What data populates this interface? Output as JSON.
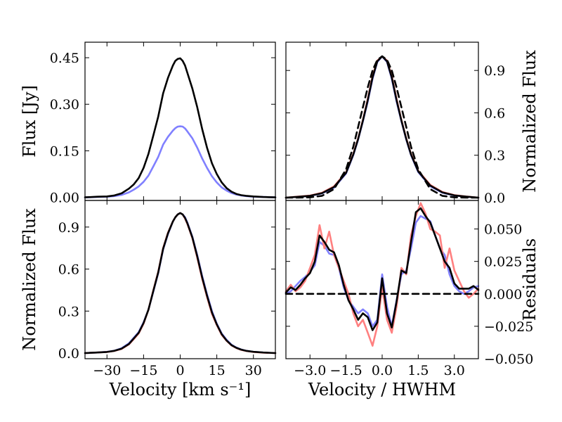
{
  "chart_data": [
    {
      "panel": "top-left",
      "type": "line",
      "title": "",
      "xlabel": "",
      "ylabel": "Flux [Jy]",
      "xlim": [
        -39,
        39
      ],
      "ylim": [
        -0.01,
        0.5
      ],
      "xticks": [
        -30,
        -15,
        0,
        15,
        30
      ],
      "xtick_labels": [],
      "yticks": [
        0.0,
        0.15,
        0.3,
        0.45
      ],
      "ytick_labels": [
        "0.00",
        "0.15",
        "0.30",
        "0.45"
      ],
      "y_axis_side": "left",
      "series": [
        {
          "color": "#8080ff",
          "x": [
            -39,
            -34,
            -30,
            -27,
            -24,
            -21,
            -19,
            -17,
            -15,
            -13,
            -11,
            -9,
            -7,
            -5,
            -3,
            -2,
            -1,
            0,
            1,
            2,
            3,
            5,
            7,
            9,
            11,
            13,
            15,
            17,
            19,
            21,
            23,
            25,
            27,
            30,
            34,
            39
          ],
          "y": [
            0.0,
            0.001,
            0.002,
            0.004,
            0.008,
            0.016,
            0.025,
            0.035,
            0.05,
            0.07,
            0.1,
            0.13,
            0.17,
            0.195,
            0.215,
            0.223,
            0.228,
            0.229,
            0.228,
            0.222,
            0.212,
            0.19,
            0.16,
            0.125,
            0.095,
            0.068,
            0.048,
            0.032,
            0.022,
            0.014,
            0.009,
            0.006,
            0.004,
            0.002,
            0.001,
            0.0
          ]
        },
        {
          "color": "#000000",
          "x": [
            -39,
            -34,
            -30,
            -27,
            -24,
            -21,
            -19,
            -17,
            -15,
            -13,
            -11,
            -9,
            -7,
            -5,
            -3,
            -2,
            -1,
            0,
            1,
            2,
            3,
            5,
            7,
            9,
            11,
            13,
            15,
            17,
            19,
            21,
            23,
            25,
            27,
            30,
            34,
            39
          ],
          "y": [
            0.0,
            0.002,
            0.003,
            0.006,
            0.013,
            0.028,
            0.042,
            0.062,
            0.095,
            0.14,
            0.2,
            0.26,
            0.335,
            0.385,
            0.425,
            0.44,
            0.446,
            0.448,
            0.44,
            0.425,
            0.4,
            0.35,
            0.29,
            0.22,
            0.16,
            0.11,
            0.075,
            0.048,
            0.03,
            0.018,
            0.011,
            0.007,
            0.005,
            0.003,
            0.001,
            0.0
          ]
        }
      ]
    },
    {
      "panel": "top-right",
      "type": "line",
      "title": "",
      "xlabel": "",
      "ylabel": "Normalized Flux",
      "xlim": [
        -4.0,
        4.0
      ],
      "ylim": [
        -0.02,
        1.1
      ],
      "xticks": [
        -3.0,
        -1.5,
        0.0,
        1.5,
        3.0
      ],
      "xtick_labels": [],
      "yticks": [
        0.0,
        0.3,
        0.6,
        0.9
      ],
      "ytick_labels": [
        "0.0",
        "0.3",
        "0.6",
        "0.9"
      ],
      "y_axis_side": "right",
      "series": [
        {
          "color": "#8080ff",
          "x": [
            -4,
            -3.5,
            -3,
            -2.5,
            -2,
            -1.5,
            -1.2,
            -1,
            -0.8,
            -0.6,
            -0.4,
            -0.2,
            0,
            0.2,
            0.4,
            0.6,
            0.8,
            1,
            1.2,
            1.5,
            2,
            2.5,
            3,
            3.5,
            4
          ],
          "y": [
            0.0,
            0.005,
            0.012,
            0.03,
            0.07,
            0.17,
            0.3,
            0.41,
            0.54,
            0.68,
            0.84,
            0.96,
            1.0,
            0.96,
            0.84,
            0.68,
            0.54,
            0.41,
            0.3,
            0.18,
            0.08,
            0.035,
            0.015,
            0.006,
            0.0
          ]
        },
        {
          "color": "#ff8080",
          "x": [
            -4,
            -3.5,
            -3,
            -2.5,
            -2,
            -1.5,
            -1.2,
            -1,
            -0.8,
            -0.6,
            -0.4,
            -0.2,
            0,
            0.2,
            0.4,
            0.6,
            0.8,
            1,
            1.2,
            1.5,
            2,
            2.5,
            3,
            3.5,
            4
          ],
          "y": [
            0.0,
            0.007,
            0.015,
            0.035,
            0.08,
            0.18,
            0.31,
            0.42,
            0.55,
            0.7,
            0.86,
            0.97,
            1.0,
            0.97,
            0.86,
            0.7,
            0.55,
            0.42,
            0.31,
            0.19,
            0.09,
            0.04,
            0.018,
            0.008,
            0.0
          ]
        },
        {
          "color": "#000000",
          "x": [
            -4,
            -3.5,
            -3,
            -2.5,
            -2,
            -1.5,
            -1.2,
            -1,
            -0.8,
            -0.6,
            -0.4,
            -0.2,
            0,
            0.2,
            0.4,
            0.6,
            0.8,
            1,
            1.2,
            1.5,
            2,
            2.5,
            3,
            3.5,
            4
          ],
          "y": [
            0.0,
            0.006,
            0.013,
            0.032,
            0.075,
            0.175,
            0.305,
            0.415,
            0.545,
            0.69,
            0.85,
            0.965,
            1.0,
            0.965,
            0.85,
            0.69,
            0.545,
            0.415,
            0.305,
            0.185,
            0.085,
            0.037,
            0.016,
            0.007,
            0.0
          ]
        },
        {
          "color": "#000000",
          "dashed": true,
          "x": [
            -4,
            -3.5,
            -3,
            -2.5,
            -2,
            -1.5,
            -1.2,
            -1,
            -0.8,
            -0.6,
            -0.4,
            -0.2,
            0,
            0.2,
            0.4,
            0.6,
            0.8,
            1,
            1.2,
            1.5,
            2,
            2.5,
            3,
            3.5,
            4
          ],
          "y": [
            0.0,
            0.0,
            0.002,
            0.013,
            0.06,
            0.2,
            0.36,
            0.5,
            0.64,
            0.78,
            0.9,
            0.975,
            1.0,
            0.975,
            0.9,
            0.78,
            0.64,
            0.5,
            0.36,
            0.2,
            0.06,
            0.013,
            0.002,
            0.0,
            0.0
          ]
        }
      ]
    },
    {
      "panel": "bottom-left",
      "type": "line",
      "title": "",
      "xlabel": "Velocity [km s⁻¹]",
      "ylabel": "Normalized Flux",
      "xlim": [
        -39,
        39
      ],
      "ylim": [
        -0.04,
        1.09
      ],
      "xticks": [
        -30,
        -15,
        0,
        15,
        30
      ],
      "xtick_labels": [
        "−30",
        "−15",
        "0",
        "15",
        "30"
      ],
      "yticks": [
        0.0,
        0.3,
        0.6,
        0.9
      ],
      "ytick_labels": [
        "0.0",
        "0.3",
        "0.6",
        "0.9"
      ],
      "y_axis_side": "left",
      "series": [
        {
          "color": "#8080ff",
          "x": [
            -39,
            -34,
            -30,
            -27,
            -24,
            -21,
            -19,
            -17,
            -15,
            -13,
            -11,
            -9,
            -7,
            -5,
            -3,
            -2,
            -1,
            0,
            1,
            2,
            3,
            5,
            7,
            9,
            11,
            13,
            15,
            17,
            19,
            21,
            23,
            25,
            27,
            30,
            34,
            39
          ],
          "y": [
            0.0,
            0.004,
            0.009,
            0.017,
            0.035,
            0.07,
            0.11,
            0.15,
            0.22,
            0.31,
            0.44,
            0.57,
            0.74,
            0.85,
            0.94,
            0.97,
            0.99,
            1.0,
            0.99,
            0.97,
            0.93,
            0.83,
            0.7,
            0.55,
            0.42,
            0.3,
            0.21,
            0.14,
            0.095,
            0.06,
            0.04,
            0.026,
            0.017,
            0.009,
            0.004,
            0.0
          ]
        },
        {
          "color": "#ff8080",
          "x": [
            -39,
            -34,
            -30,
            -27,
            -24,
            -21,
            -19,
            -17,
            -15,
            -13,
            -11,
            -9,
            -7,
            -5,
            -3,
            -2,
            -1,
            0,
            1,
            2,
            3,
            5,
            7,
            9,
            11,
            13,
            15,
            17,
            19,
            21,
            23,
            25,
            27,
            30,
            34,
            39
          ],
          "y": [
            0.0,
            0.004,
            0.008,
            0.015,
            0.03,
            0.062,
            0.1,
            0.14,
            0.21,
            0.31,
            0.45,
            0.58,
            0.75,
            0.86,
            0.94,
            0.97,
            0.99,
            1.0,
            0.99,
            0.96,
            0.92,
            0.82,
            0.68,
            0.53,
            0.4,
            0.28,
            0.2,
            0.13,
            0.088,
            0.055,
            0.036,
            0.023,
            0.015,
            0.008,
            0.003,
            0.0
          ]
        },
        {
          "color": "#000000",
          "x": [
            -39,
            -34,
            -30,
            -27,
            -24,
            -21,
            -19,
            -17,
            -15,
            -13,
            -11,
            -9,
            -7,
            -5,
            -3,
            -2,
            -1,
            0,
            1,
            2,
            3,
            5,
            7,
            9,
            11,
            13,
            15,
            17,
            19,
            21,
            23,
            25,
            27,
            30,
            34,
            39
          ],
          "y": [
            0.0,
            0.004,
            0.008,
            0.016,
            0.032,
            0.065,
            0.105,
            0.145,
            0.215,
            0.31,
            0.445,
            0.575,
            0.745,
            0.855,
            0.94,
            0.97,
            0.99,
            1.0,
            0.99,
            0.965,
            0.925,
            0.825,
            0.69,
            0.54,
            0.41,
            0.29,
            0.205,
            0.135,
            0.09,
            0.057,
            0.038,
            0.025,
            0.016,
            0.009,
            0.004,
            0.0
          ]
        }
      ]
    },
    {
      "panel": "bottom-right",
      "type": "line",
      "title": "",
      "xlabel": "Velocity / HWHM",
      "ylabel": "Residuals",
      "xlim": [
        -4.0,
        4.0
      ],
      "ylim": [
        -0.05,
        0.072
      ],
      "xticks": [
        -3.0,
        -1.5,
        0.0,
        1.5,
        3.0
      ],
      "xtick_labels": [
        "−3.0",
        "−1.5",
        "0.0",
        "1.5",
        "3.0"
      ],
      "yticks": [
        -0.05,
        -0.025,
        0.0,
        0.025,
        0.05
      ],
      "ytick_labels": [
        "−0.050",
        "−0.025",
        "0.000",
        "0.025",
        "0.050"
      ],
      "y_axis_side": "right",
      "series": [
        {
          "color": "#8080ff",
          "x": [
            -4,
            -3.8,
            -3.6,
            -3.4,
            -3.2,
            -3.0,
            -2.8,
            -2.6,
            -2.4,
            -2.2,
            -2.0,
            -1.8,
            -1.6,
            -1.4,
            -1.2,
            -1.0,
            -0.8,
            -0.6,
            -0.4,
            -0.2,
            0.0,
            0.2,
            0.4,
            0.6,
            0.8,
            1.0,
            1.2,
            1.4,
            1.6,
            1.8,
            2.0,
            2.2,
            2.4,
            2.6,
            2.8,
            3.0,
            3.2,
            3.4,
            3.6,
            3.8,
            4.0
          ],
          "y": [
            0.0,
            0.002,
            0.006,
            0.01,
            0.013,
            0.017,
            0.022,
            0.04,
            0.037,
            0.031,
            0.03,
            0.02,
            0.005,
            -0.005,
            -0.01,
            -0.015,
            -0.012,
            -0.015,
            -0.025,
            -0.02,
            0.015,
            -0.01,
            -0.025,
            -0.005,
            0.015,
            0.018,
            0.035,
            0.055,
            0.06,
            0.058,
            0.056,
            0.045,
            0.035,
            0.03,
            0.015,
            0.006,
            0.002,
            0.0,
            0.002,
            0.005,
            0.006
          ]
        },
        {
          "color": "#ff8080",
          "x": [
            -4,
            -3.8,
            -3.6,
            -3.4,
            -3.2,
            -3.0,
            -2.8,
            -2.6,
            -2.4,
            -2.2,
            -2.0,
            -1.8,
            -1.6,
            -1.4,
            -1.2,
            -1.0,
            -0.8,
            -0.6,
            -0.4,
            -0.2,
            0.0,
            0.2,
            0.4,
            0.6,
            0.8,
            1.0,
            1.2,
            1.4,
            1.6,
            1.8,
            2.0,
            2.2,
            2.4,
            2.6,
            2.8,
            3.0,
            3.2,
            3.4,
            3.6,
            3.8,
            4.0
          ],
          "y": [
            0.002,
            0.007,
            0.002,
            0.005,
            0.01,
            0.02,
            0.03,
            0.053,
            0.035,
            0.048,
            0.03,
            0.02,
            0.01,
            0.0,
            -0.015,
            -0.025,
            -0.02,
            -0.03,
            -0.04,
            -0.025,
            0.005,
            -0.02,
            -0.03,
            -0.01,
            0.02,
            0.015,
            0.045,
            0.06,
            0.07,
            0.062,
            0.05,
            0.048,
            0.045,
            0.02,
            0.035,
            0.018,
            0.01,
            0.002,
            -0.003,
            0.0,
            0.004
          ]
        },
        {
          "color": "#000000",
          "x": [
            -4,
            -3.8,
            -3.6,
            -3.4,
            -3.2,
            -3.0,
            -2.8,
            -2.6,
            -2.4,
            -2.2,
            -2.0,
            -1.8,
            -1.6,
            -1.4,
            -1.2,
            -1.0,
            -0.8,
            -0.6,
            -0.4,
            -0.2,
            0.0,
            0.2,
            0.4,
            0.6,
            0.8,
            1.0,
            1.2,
            1.4,
            1.6,
            1.8,
            2.0,
            2.2,
            2.4,
            2.6,
            2.8,
            3.0,
            3.2,
            3.4,
            3.6,
            3.8,
            4.0
          ],
          "y": [
            0.001,
            0.005,
            0.003,
            0.007,
            0.012,
            0.016,
            0.025,
            0.045,
            0.04,
            0.034,
            0.032,
            0.022,
            0.007,
            -0.005,
            -0.012,
            -0.02,
            -0.015,
            -0.018,
            -0.028,
            -0.022,
            0.012,
            -0.015,
            -0.026,
            -0.006,
            0.018,
            0.016,
            0.04,
            0.063,
            0.066,
            0.06,
            0.055,
            0.045,
            0.035,
            0.025,
            0.02,
            0.008,
            0.004,
            0.004,
            0.004,
            0.006,
            0.003
          ]
        },
        {
          "color": "#000000",
          "dashed": true,
          "x": [
            -4.0,
            4.0
          ],
          "y": [
            0.0,
            0.0
          ]
        }
      ]
    }
  ]
}
